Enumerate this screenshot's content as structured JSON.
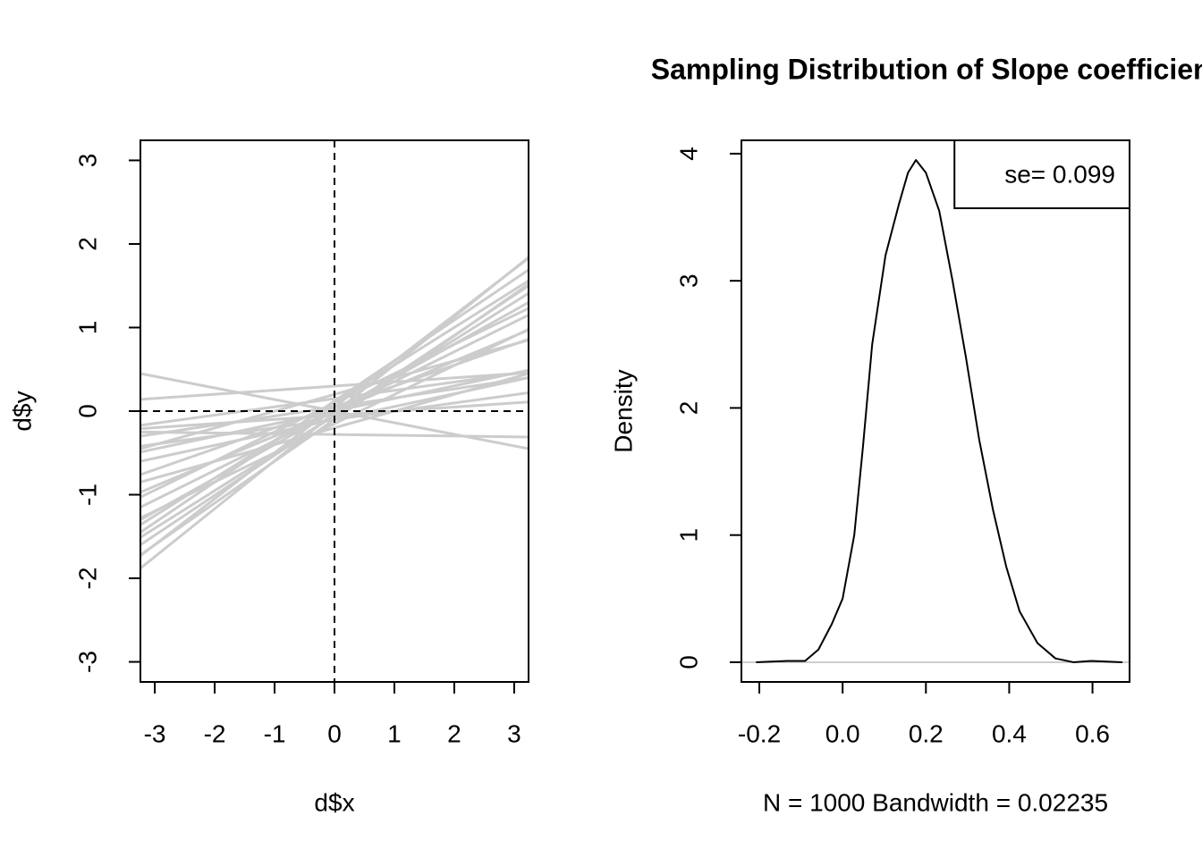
{
  "chart_data": [
    {
      "type": "line",
      "xlabel": "d$x",
      "ylabel": "d$y",
      "x": [
        -3.24,
        0,
        3.24
      ],
      "series": [
        {
          "color": "#cccccc",
          "values": [
            0.45,
            0,
            -0.45
          ]
        },
        {
          "color": "#cccccc",
          "values": [
            0.14,
            0.3,
            0.46
          ]
        },
        {
          "color": "#cccccc",
          "values": [
            -0.25,
            -0.28,
            -0.31
          ]
        },
        {
          "color": "#cccccc",
          "values": [
            -1.73,
            0.05,
            1.83
          ]
        },
        {
          "color": "#cccccc",
          "values": [
            -1.72,
            -0.1,
            1.52
          ]
        },
        {
          "color": "#cccccc",
          "values": [
            -1.36,
            0.1,
            1.56
          ]
        },
        {
          "color": "#cccccc",
          "values": [
            -0.97,
            0,
            0.97
          ]
        },
        {
          "color": "#cccccc",
          "values": [
            -0.85,
            -0.2,
            0.45
          ]
        },
        {
          "color": "#cccccc",
          "values": [
            -0.45,
            0.2,
            0.85
          ]
        },
        {
          "color": "#cccccc",
          "values": [
            -1.3,
            0,
            1.3
          ]
        },
        {
          "color": "#cccccc",
          "values": [
            -1.28,
            -0.15,
            0.98
          ]
        },
        {
          "color": "#cccccc",
          "values": [
            -0.17,
            0.15,
            0.47
          ]
        },
        {
          "color": "#cccccc",
          "values": [
            -0.42,
            -0.1,
            0.22
          ]
        },
        {
          "color": "#cccccc",
          "values": [
            -0.76,
            0.05,
            0.86
          ]
        },
        {
          "color": "#cccccc",
          "values": [
            -1.51,
            -0.05,
            1.41
          ]
        },
        {
          "color": "#cccccc",
          "values": [
            -0.49,
            0,
            0.49
          ]
        },
        {
          "color": "#cccccc",
          "values": [
            -1.03,
            0.1,
            1.23
          ]
        },
        {
          "color": "#cccccc",
          "values": [
            -0.21,
            -0.05,
            0.11
          ]
        },
        {
          "color": "#cccccc",
          "values": [
            -1.88,
            -0.02,
            1.84
          ]
        },
        {
          "color": "#cccccc",
          "values": [
            -1.6,
            -0.05,
            1.5
          ]
        },
        {
          "color": "#cccccc",
          "values": [
            -1.15,
            0,
            1.15
          ]
        },
        {
          "color": "#cccccc",
          "values": [
            -0.6,
            -0.1,
            0.4
          ]
        },
        {
          "color": "#cccccc",
          "values": [
            -0.3,
            0.05,
            0.4
          ]
        },
        {
          "color": "#cccccc",
          "values": [
            -1.45,
            0.12,
            1.69
          ]
        }
      ],
      "hline": 0,
      "vline": 0,
      "xlim": [
        -3.24,
        3.24
      ],
      "xticks": [
        -3,
        -2,
        -1,
        0,
        1,
        2,
        3
      ],
      "ylim": [
        -3.24,
        3.24
      ],
      "yticks": [
        -3,
        -2,
        -1,
        0,
        1,
        2,
        3
      ]
    },
    {
      "type": "line",
      "title": "Sampling Distribution of Slope coefficient",
      "xlabel": "N = 1000   Bandwidth = 0.02235",
      "ylabel": "Density",
      "x": [
        -0.208,
        -0.133,
        -0.09,
        -0.058,
        -0.026,
        0.0,
        0.028,
        0.049,
        0.071,
        0.103,
        0.135,
        0.157,
        0.176,
        0.2,
        0.232,
        0.264,
        0.296,
        0.328,
        0.361,
        0.393,
        0.425,
        0.468,
        0.511,
        0.554,
        0.597,
        0.672
      ],
      "series": [
        {
          "color": "#000000",
          "values": [
            0,
            0.01,
            0.01,
            0.1,
            0.3,
            0.5,
            1.0,
            1.7,
            2.5,
            3.2,
            3.6,
            3.85,
            3.95,
            3.85,
            3.55,
            3.0,
            2.4,
            1.75,
            1.2,
            0.75,
            0.4,
            0.15,
            0.03,
            0.0,
            0.01,
            0.0
          ]
        }
      ],
      "zero_line": true,
      "annotation_box": {
        "text": "se= 0.099",
        "corner": "topright"
      },
      "xlim": [
        -0.243,
        0.689
      ],
      "xticks": [
        -0.2,
        {
          "value": 0,
          "label": "0.0"
        },
        0.2,
        0.4,
        0.6
      ],
      "ylim": [
        -0.155,
        4.105
      ],
      "yticks": [
        0,
        1,
        2,
        3,
        4
      ]
    }
  ]
}
